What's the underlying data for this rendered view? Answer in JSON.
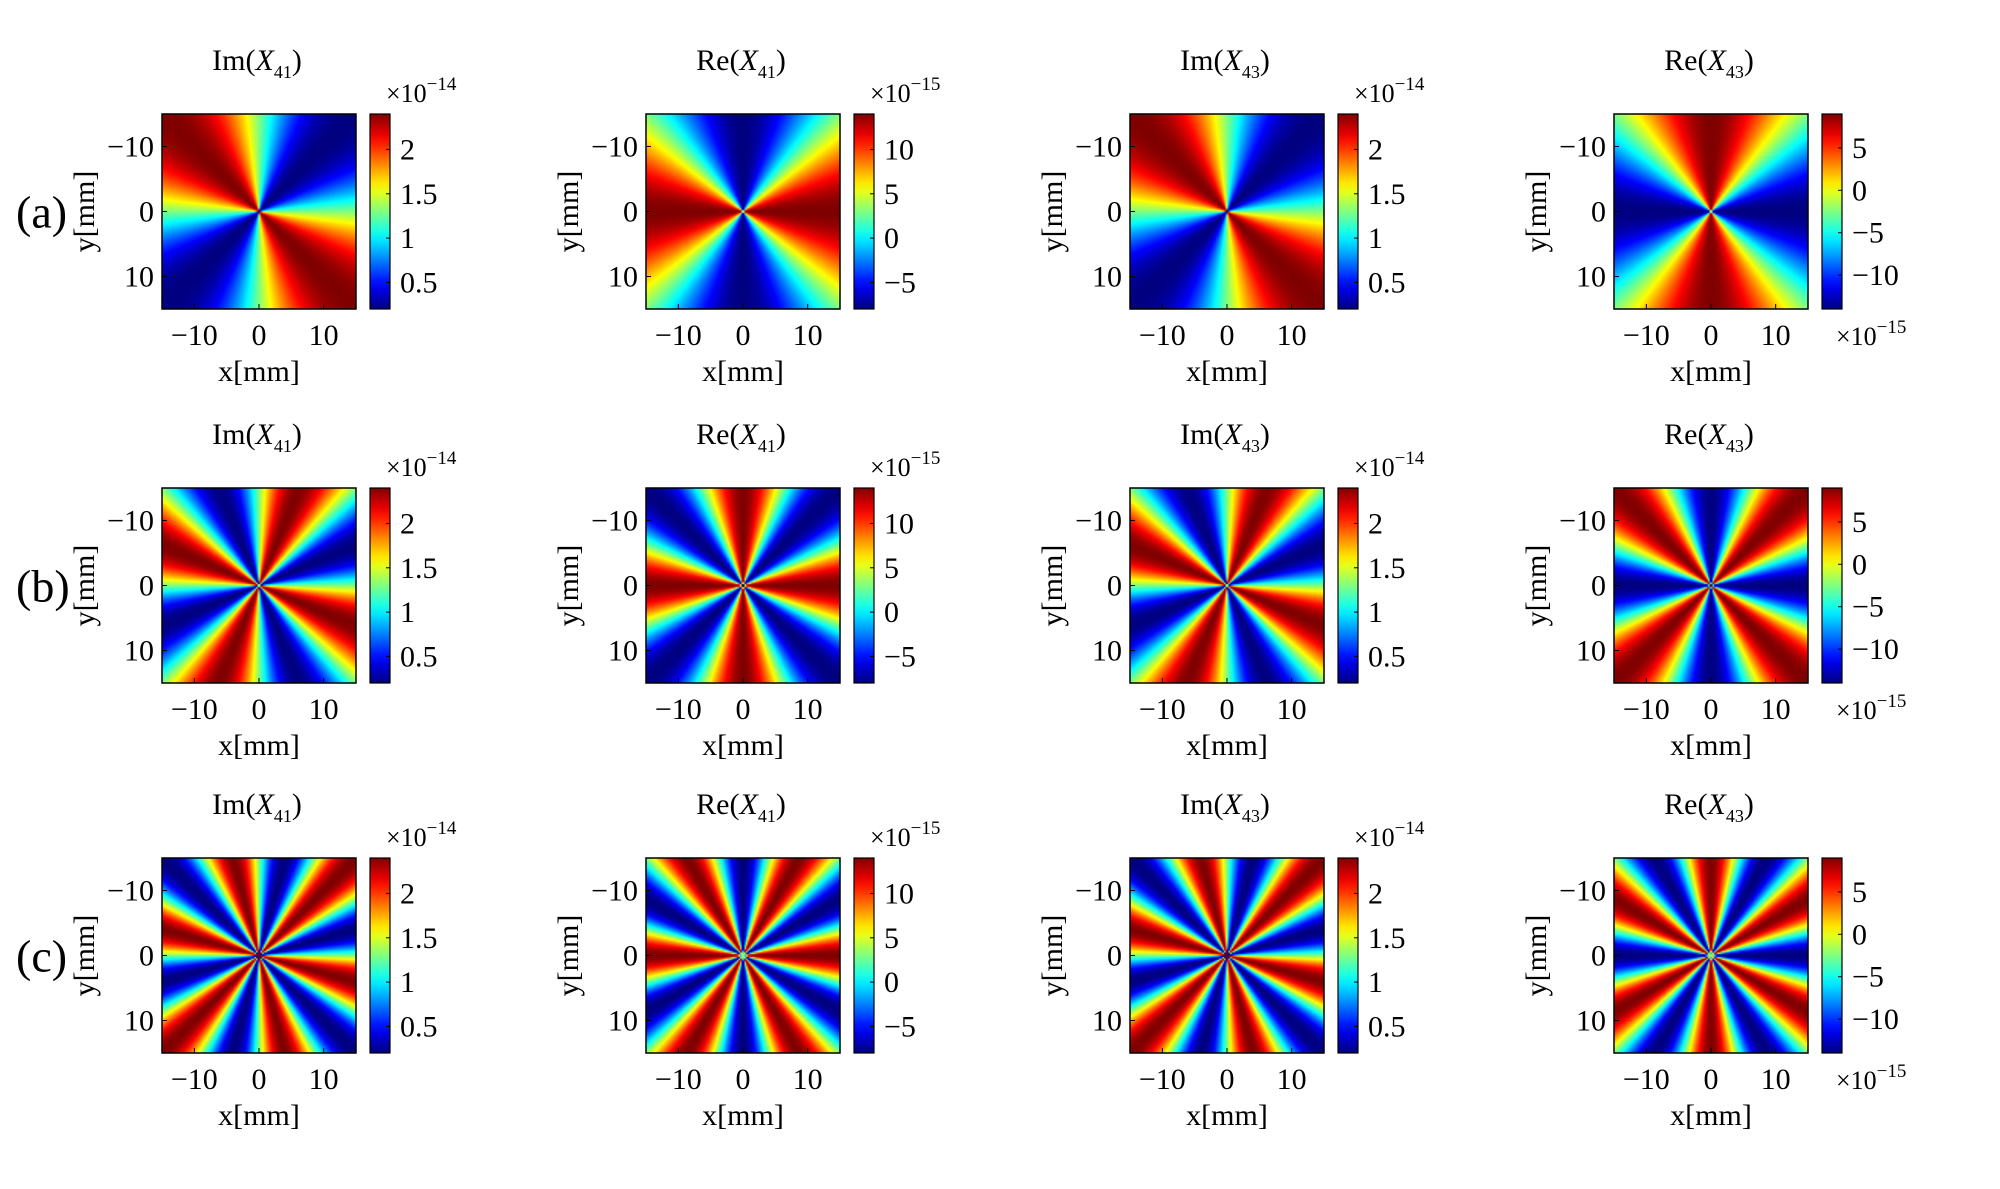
{
  "chart_data": {
    "type": "heatmap",
    "colormap": "jet",
    "rows": [
      {
        "label": "(a)",
        "lobes": 2
      },
      {
        "label": "(b)",
        "lobes": 4
      },
      {
        "label": "(c)",
        "lobes": 6
      }
    ],
    "columns": [
      {
        "title_prefix": "Im(",
        "title_var": "X",
        "title_sub": "41",
        "title_suffix": ")",
        "multiplier_base": "×10",
        "multiplier_exp": "−14",
        "colorbar_range": [
          0.2,
          2.4
        ],
        "colorbar_ticks": [
          {
            "value": 2,
            "label": "2"
          },
          {
            "value": 1.5,
            "label": "1.5"
          },
          {
            "value": 1,
            "label": "1"
          },
          {
            "value": 0.5,
            "label": "0.5"
          }
        ],
        "pattern": "im41"
      },
      {
        "title_prefix": "Re(",
        "title_var": "X",
        "title_sub": "41",
        "title_suffix": ")",
        "multiplier_base": "×10",
        "multiplier_exp": "−15",
        "colorbar_range": [
          -8,
          14
        ],
        "colorbar_ticks": [
          {
            "value": 10,
            "label": "10"
          },
          {
            "value": 5,
            "label": "5"
          },
          {
            "value": 0,
            "label": "0"
          },
          {
            "value": -5,
            "label": "−5"
          }
        ],
        "pattern": "re41"
      },
      {
        "title_prefix": "Im(",
        "title_var": "X",
        "title_sub": "43",
        "title_suffix": ")",
        "multiplier_base": "×10",
        "multiplier_exp": "−14",
        "colorbar_range": [
          0.2,
          2.4
        ],
        "colorbar_ticks": [
          {
            "value": 2,
            "label": "2"
          },
          {
            "value": 1.5,
            "label": "1.5"
          },
          {
            "value": 1,
            "label": "1"
          },
          {
            "value": 0.5,
            "label": "0.5"
          }
        ],
        "pattern": "im43"
      },
      {
        "title_prefix": "Re(",
        "title_var": "X",
        "title_sub": "43",
        "title_suffix": ")",
        "multiplier_base": "×10",
        "multiplier_exp": "−15",
        "multiplier_position": "bottom",
        "colorbar_range": [
          -14,
          9
        ],
        "colorbar_ticks": [
          {
            "value": 5,
            "label": "5"
          },
          {
            "value": 0,
            "label": "0"
          },
          {
            "value": -5,
            "label": "−5"
          },
          {
            "value": -10,
            "label": "−10"
          }
        ],
        "pattern": "re43"
      }
    ],
    "x_axis": {
      "label": "x[mm]",
      "range": [
        -15,
        15
      ],
      "ticks": [
        {
          "value": -10,
          "label": "−10"
        },
        {
          "value": 0,
          "label": "0"
        },
        {
          "value": 10,
          "label": "10"
        }
      ]
    },
    "y_axis": {
      "label": "y[mm]",
      "range": [
        -15,
        15
      ],
      "reversed": true,
      "ticks": [
        {
          "value": -10,
          "label": "−10"
        },
        {
          "value": 0,
          "label": "0"
        },
        {
          "value": 10,
          "label": "10"
        }
      ]
    },
    "grid": false,
    "legend": "none"
  }
}
